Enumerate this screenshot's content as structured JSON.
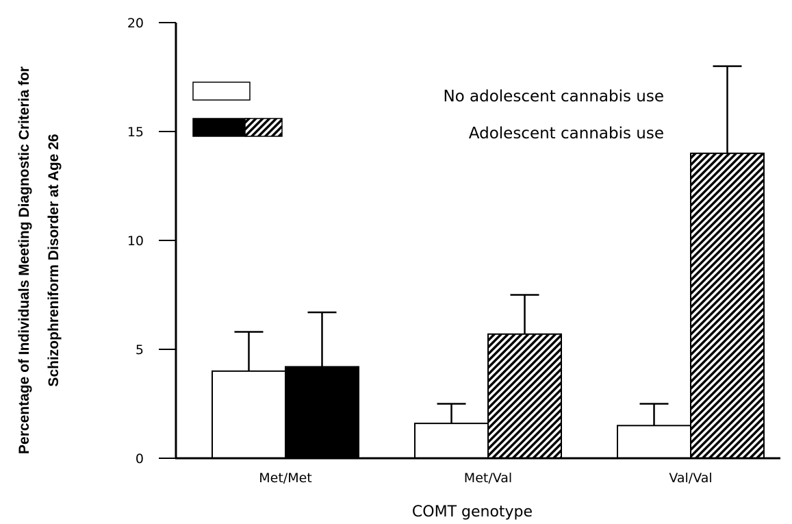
{
  "chart_data": {
    "type": "bar",
    "title": "",
    "xlabel": "COMT genotype",
    "ylabel_lines": [
      "Percentage of Individuals Meeting Diagnostic Criteria for",
      "Schizophreniform Disorder at Age 26"
    ],
    "ylim": [
      0,
      20
    ],
    "yticks": [
      0,
      5,
      10,
      15,
      20
    ],
    "categories": [
      "Met/Met",
      "Met/Val",
      "Val/Val"
    ],
    "series": [
      {
        "name": "No adolescent cannabis use",
        "values": [
          4.0,
          1.6,
          1.5
        ],
        "error_upper": [
          5.8,
          2.5,
          2.5
        ],
        "fills": [
          "white",
          "white",
          "white"
        ]
      },
      {
        "name": "Adolescent cannabis use",
        "values": [
          4.2,
          5.7,
          14.0
        ],
        "error_upper": [
          6.7,
          7.5,
          18.0
        ],
        "fills": [
          "black",
          "hatch",
          "hatch"
        ]
      }
    ],
    "legend": {
      "placement": "top",
      "entries": [
        {
          "label": "No adolescent cannabis use",
          "swatches": [
            "white"
          ]
        },
        {
          "label": "Adolescent cannabis use",
          "swatches": [
            "black",
            "hatch"
          ]
        }
      ]
    },
    "grid": false,
    "colors": {
      "white": "#ffffff",
      "black": "#000000",
      "stroke": "#000000"
    }
  }
}
